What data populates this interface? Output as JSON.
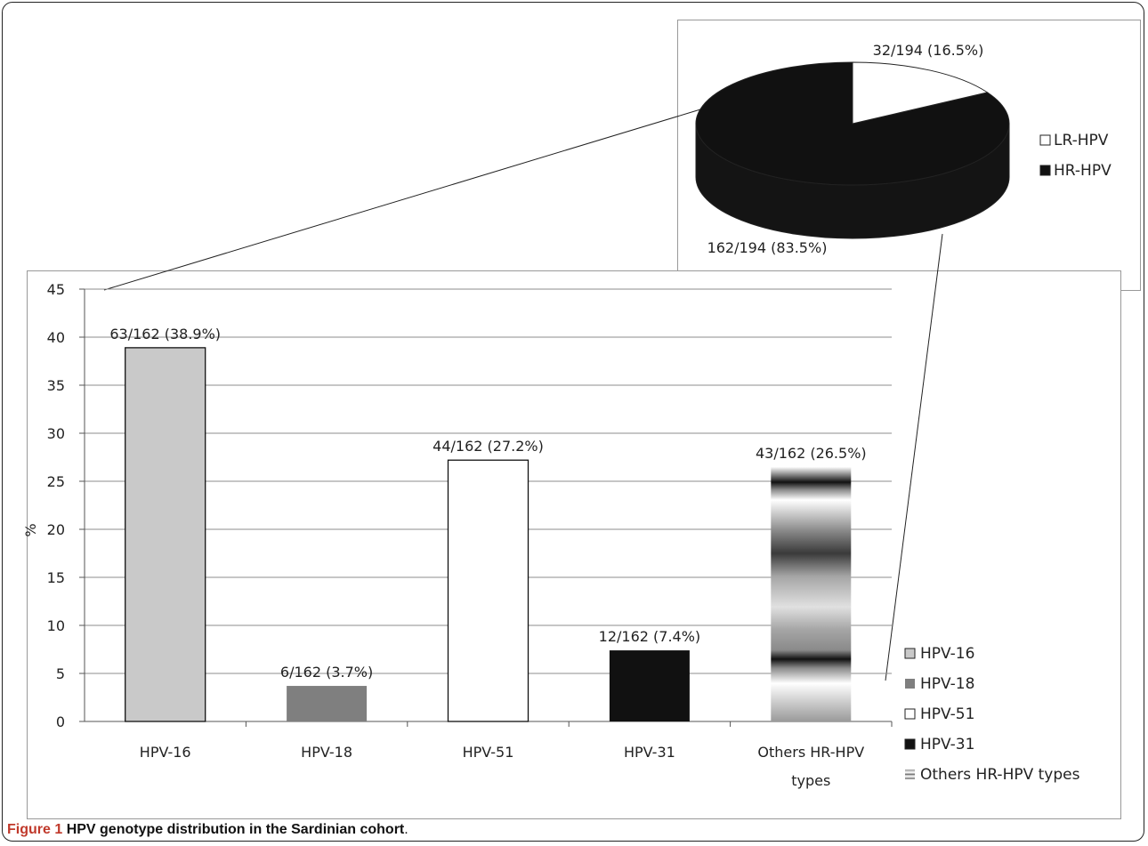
{
  "caption": {
    "figure_label": "Figure 1",
    "text": "HPV genotype distribution in the Sardinian cohort",
    "end": "."
  },
  "chart_data": [
    {
      "type": "pie",
      "categories": [
        "LR-HPV",
        "HR-HPV"
      ],
      "values": [
        16.5,
        83.5
      ],
      "counts": [
        "32/194",
        "162/194"
      ],
      "labels": [
        "32/194 (16.5%)",
        "162/194 (83.5%)"
      ],
      "colors": [
        "#ffffff",
        "#111111"
      ],
      "legend": [
        "LR-HPV",
        "HR-HPV"
      ],
      "legend_position": "right",
      "three_d": true
    },
    {
      "type": "bar",
      "categories": [
        "HPV-16",
        "HPV-18",
        "HPV-51",
        "HPV-31",
        "Others HR-HPV types"
      ],
      "category_tick_lines": [
        [
          "HPV-16"
        ],
        [
          "HPV-18"
        ],
        [
          "HPV-51"
        ],
        [
          "HPV-31"
        ],
        [
          "Others HR-HPV",
          "types"
        ]
      ],
      "values": [
        38.9,
        3.7,
        27.2,
        7.4,
        26.5
      ],
      "data_labels": [
        "63/162 (38.9%)",
        "6/162 (3.7%)",
        "44/162 (27.2%)",
        "12/162 (7.4%)",
        "43/162 (26.5%)"
      ],
      "colors": [
        "#c9c9c9",
        "#7f7f7f",
        "#ffffff",
        "#111111",
        "pattern"
      ],
      "ylabel": "%",
      "xlabel": "",
      "ylim": [
        0,
        45
      ],
      "yticks": [
        0,
        5,
        10,
        15,
        20,
        25,
        30,
        35,
        40,
        45
      ],
      "grid": true,
      "legend": [
        "HPV-16",
        "HPV-18",
        "HPV-51",
        "HPV-31",
        "Others HR-HPV types"
      ],
      "legend_position": "right"
    }
  ]
}
